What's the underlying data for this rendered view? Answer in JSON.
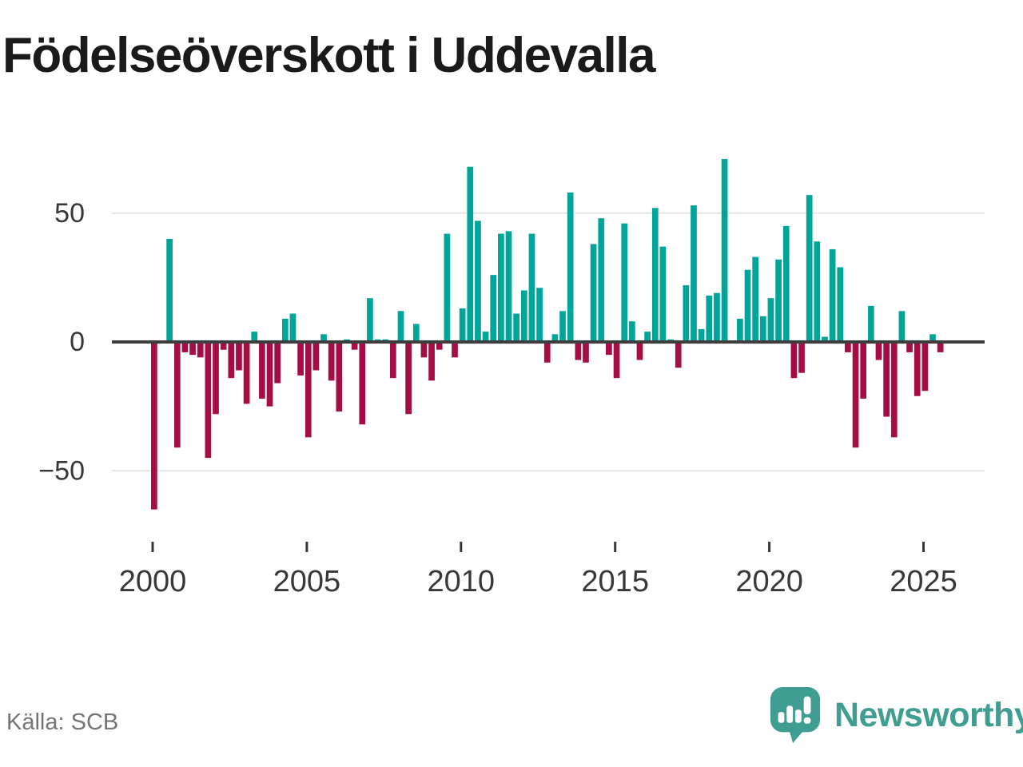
{
  "title": "Födelseöverskott i Uddevalla",
  "footer": {
    "source": "Källa: SCB",
    "brand": "Newsworthy"
  },
  "colors": {
    "positive": "#00a59a",
    "negative": "#a50d45",
    "grid": "#e4e4e4",
    "zero_line": "#3d3d3d",
    "axis_text": "#383838",
    "title_text": "#1a1a1a",
    "source_text": "#757575",
    "brand_teal": "#3f9d92"
  },
  "chart_data": {
    "type": "bar",
    "title": "Födelseöverskott i Uddevalla",
    "frequency": "quarterly",
    "start_year": 2000,
    "start_quarter": 1,
    "xlabel": "",
    "ylabel": "",
    "grid": "horizontal",
    "legend": "none",
    "ylim": [
      -72,
      76
    ],
    "y_ticks": [
      50,
      0,
      -50
    ],
    "y_tick_labels": [
      "50",
      "0",
      "−50"
    ],
    "x_tick_years": [
      2000,
      2005,
      2010,
      2015,
      2020,
      2025
    ],
    "x_tick_labels": [
      "2000",
      "2005",
      "2010",
      "2015",
      "2020",
      "2025"
    ],
    "series_name": "Födelseöverskott",
    "values": [
      -65,
      0,
      40,
      -41,
      -4,
      -5,
      -6,
      -45,
      -28,
      -3,
      -14,
      -11,
      -24,
      4,
      -22,
      -25,
      -16,
      9,
      11,
      -13,
      -37,
      -11,
      3,
      -15,
      -27,
      1,
      -3,
      -32,
      17,
      1,
      1,
      -14,
      12,
      -28,
      7,
      -6,
      -15,
      -3,
      42,
      -6,
      13,
      68,
      47,
      4,
      26,
      42,
      43,
      11,
      20,
      42,
      21,
      -8,
      3,
      12,
      58,
      -7,
      -8,
      38,
      48,
      -5,
      -14,
      46,
      8,
      -7,
      4,
      52,
      37,
      1,
      -10,
      22,
      53,
      5,
      18,
      19,
      71,
      0,
      9,
      28,
      33,
      10,
      17,
      32,
      45,
      -14,
      -12,
      57,
      39,
      2,
      36,
      29,
      -4,
      -41,
      -22,
      14,
      -7,
      -29,
      -37,
      12,
      -4,
      -21,
      -19,
      3,
      -4
    ]
  }
}
